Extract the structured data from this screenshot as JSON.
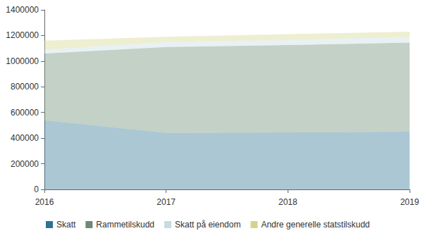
{
  "chart_data": {
    "type": "area",
    "stacked": true,
    "grid": false,
    "legend": "bottom",
    "categories": [
      "2016",
      "2017",
      "2018",
      "2019"
    ],
    "series": [
      {
        "name": "Skatt",
        "color": "#2d7393",
        "values": [
          540000,
          440000,
          445000,
          450000
        ]
      },
      {
        "name": "Rammetilskudd",
        "color": "#6b8b74",
        "values": [
          520000,
          670000,
          680000,
          695000
        ]
      },
      {
        "name": "Skatt på eiendom",
        "color": "#c5dce0",
        "values": [
          30000,
          40000,
          40000,
          45000
        ]
      },
      {
        "name": "Andre generelle statstilskudd",
        "color": "#d4d48c",
        "values": [
          70000,
          40000,
          45000,
          40000
        ]
      }
    ],
    "ylim": [
      0,
      1400000
    ],
    "yticks": [
      0,
      200000,
      400000,
      600000,
      800000,
      1000000,
      1200000,
      1400000
    ]
  }
}
